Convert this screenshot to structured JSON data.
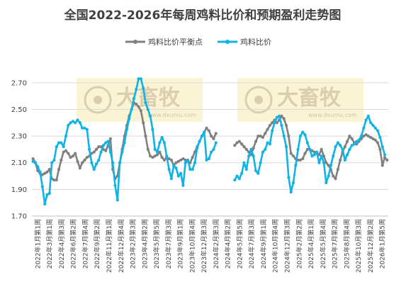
{
  "chart_data": {
    "type": "line",
    "title": "全国2022-2026年每周鸡料比价和预期盈利走势图",
    "xlabel": "",
    "ylabel": "",
    "ylim": [
      1.7,
      2.8
    ],
    "yticks": [
      "1.70",
      "1.90",
      "2.10",
      "2.30",
      "2.50",
      "2.70"
    ],
    "grid": "horizontal",
    "legend_position": "top",
    "x_tick_labels": [
      "2022年1月第1周",
      "2022年3月第1周",
      "2022年4月第3周",
      "2022年6月第2周",
      "2022年7月第4周",
      "2022年9月第2周",
      "2022年11月第1周",
      "2022年12月第4周",
      "2023年2月第3周",
      "2023年4月第2周",
      "2023年5月第5周",
      "2023年7月第3周",
      "2023年9月第1周",
      "2023年10月第4周",
      "2023年12月第3周",
      "2024年2月第3周",
      "2024年4月第2周",
      "2024年5月第5周",
      "2024年7月第3周",
      "2024年9月第1周",
      "2024年10月第4周",
      "2024年12月第3周",
      "2025年2月第2周",
      "2025年4月第1周",
      "2025年5月第4周",
      "2025年7月第2周",
      "2025年8月第4周",
      "2025年10月第3周",
      "2025年12月第2周",
      "2026年1月第5周"
    ],
    "series": [
      {
        "name": "鸡料比价平衡点",
        "color": "#808080",
        "values": [
          2.13,
          2.1,
          2.04,
          2.02,
          2.01,
          2.02,
          2.03,
          2.05,
          1.98,
          1.97,
          1.97,
          2.05,
          2.12,
          2.18,
          2.19,
          2.17,
          2.14,
          2.15,
          2.17,
          2.11,
          2.06,
          2.1,
          2.12,
          2.14,
          2.15,
          2.17,
          2.18,
          2.2,
          2.22,
          2.22,
          2.2,
          2.19,
          2.23,
          2.28,
          2.05,
          1.98,
          2.0,
          2.1,
          2.2,
          2.3,
          2.38,
          2.45,
          2.5,
          2.55,
          2.54,
          2.52,
          2.49,
          2.4,
          2.3,
          2.2,
          2.15,
          2.14,
          2.15,
          2.16,
          2.18,
          2.14,
          2.12,
          2.14,
          2.13,
          2.12,
          2.08,
          2.1,
          2.11,
          2.12,
          2.13,
          2.12,
          2.11,
          2.1,
          2.14,
          2.18,
          2.22,
          2.26,
          2.3,
          2.33,
          2.36,
          2.34,
          2.3,
          2.28,
          2.32,
          null,
          null,
          null,
          null,
          null,
          null,
          null,
          2.23,
          2.25,
          2.26,
          2.24,
          2.22,
          2.2,
          2.18,
          2.16,
          2.21,
          2.26,
          2.3,
          2.3,
          2.29,
          2.32,
          2.35,
          2.38,
          2.4,
          2.42,
          2.4,
          2.42,
          2.45,
          2.43,
          2.38,
          2.3,
          2.17,
          2.15,
          2.13,
          2.12,
          2.12,
          2.13,
          2.17,
          2.2,
          2.2,
          2.19,
          2.18,
          2.17,
          2.16,
          2.2,
          2.15,
          2.1,
          2.08,
          2.05,
          2.0,
          1.98,
          2.05,
          2.12,
          2.18,
          2.22,
          2.26,
          2.3,
          2.28,
          2.25,
          2.24,
          2.26,
          2.28,
          2.3,
          2.31,
          2.3,
          2.29,
          2.28,
          2.27,
          2.25,
          2.2,
          2.08,
          2.14,
          2.12
        ]
      },
      {
        "name": "鸡料比价",
        "color": "#0fb3e6",
        "values": [
          2.11,
          2.1,
          2.07,
          2.03,
          1.92,
          1.79,
          1.86,
          1.87,
          2.1,
          2.12,
          2.22,
          2.25,
          2.25,
          2.22,
          2.3,
          2.38,
          2.4,
          2.41,
          2.4,
          2.42,
          2.4,
          2.36,
          2.36,
          2.35,
          2.2,
          2.1,
          2.05,
          2.09,
          2.12,
          2.18,
          2.23,
          2.25,
          2.26,
          2.18,
          2.1,
          1.93,
          1.82,
          2.1,
          2.18,
          2.25,
          2.35,
          2.43,
          2.5,
          2.58,
          2.65,
          2.73,
          2.73,
          2.66,
          2.55,
          2.5,
          2.45,
          2.35,
          2.2,
          2.18,
          2.25,
          2.29,
          2.25,
          2.15,
          2.05,
          1.98,
          2.08,
          2.06,
          2.0,
          2.02,
          1.93,
          2.1,
          2.12,
          2.05,
          2.05,
          2.1,
          2.21,
          2.26,
          2.3,
          2.33,
          2.12,
          2.13,
          2.18,
          2.2,
          2.25,
          null,
          null,
          null,
          null,
          null,
          null,
          null,
          1.97,
          2.0,
          1.98,
          2.02,
          2.1,
          2.05,
          2.15,
          2.2,
          2.15,
          2.04,
          2.02,
          2.1,
          2.18,
          2.2,
          2.25,
          2.24,
          2.34,
          2.4,
          2.44,
          2.45,
          2.38,
          2.3,
          2.22,
          1.99,
          1.88,
          1.95,
          2.08,
          2.2,
          2.3,
          2.33,
          2.31,
          2.25,
          2.2,
          2.15,
          2.16,
          2.18,
          2.1,
          2.15,
          2.1,
          1.95,
          2.0,
          2.08,
          2.15,
          2.22,
          2.25,
          2.23,
          2.2,
          2.12,
          2.16,
          2.2,
          2.23,
          2.24,
          2.26,
          2.27,
          2.3,
          2.36,
          2.42,
          2.45,
          2.4,
          2.38,
          2.36,
          2.34,
          2.29,
          2.22,
          2.16
        ]
      }
    ]
  },
  "watermark": {
    "text": "大畜牧",
    "url": "www.dxumu.com"
  }
}
